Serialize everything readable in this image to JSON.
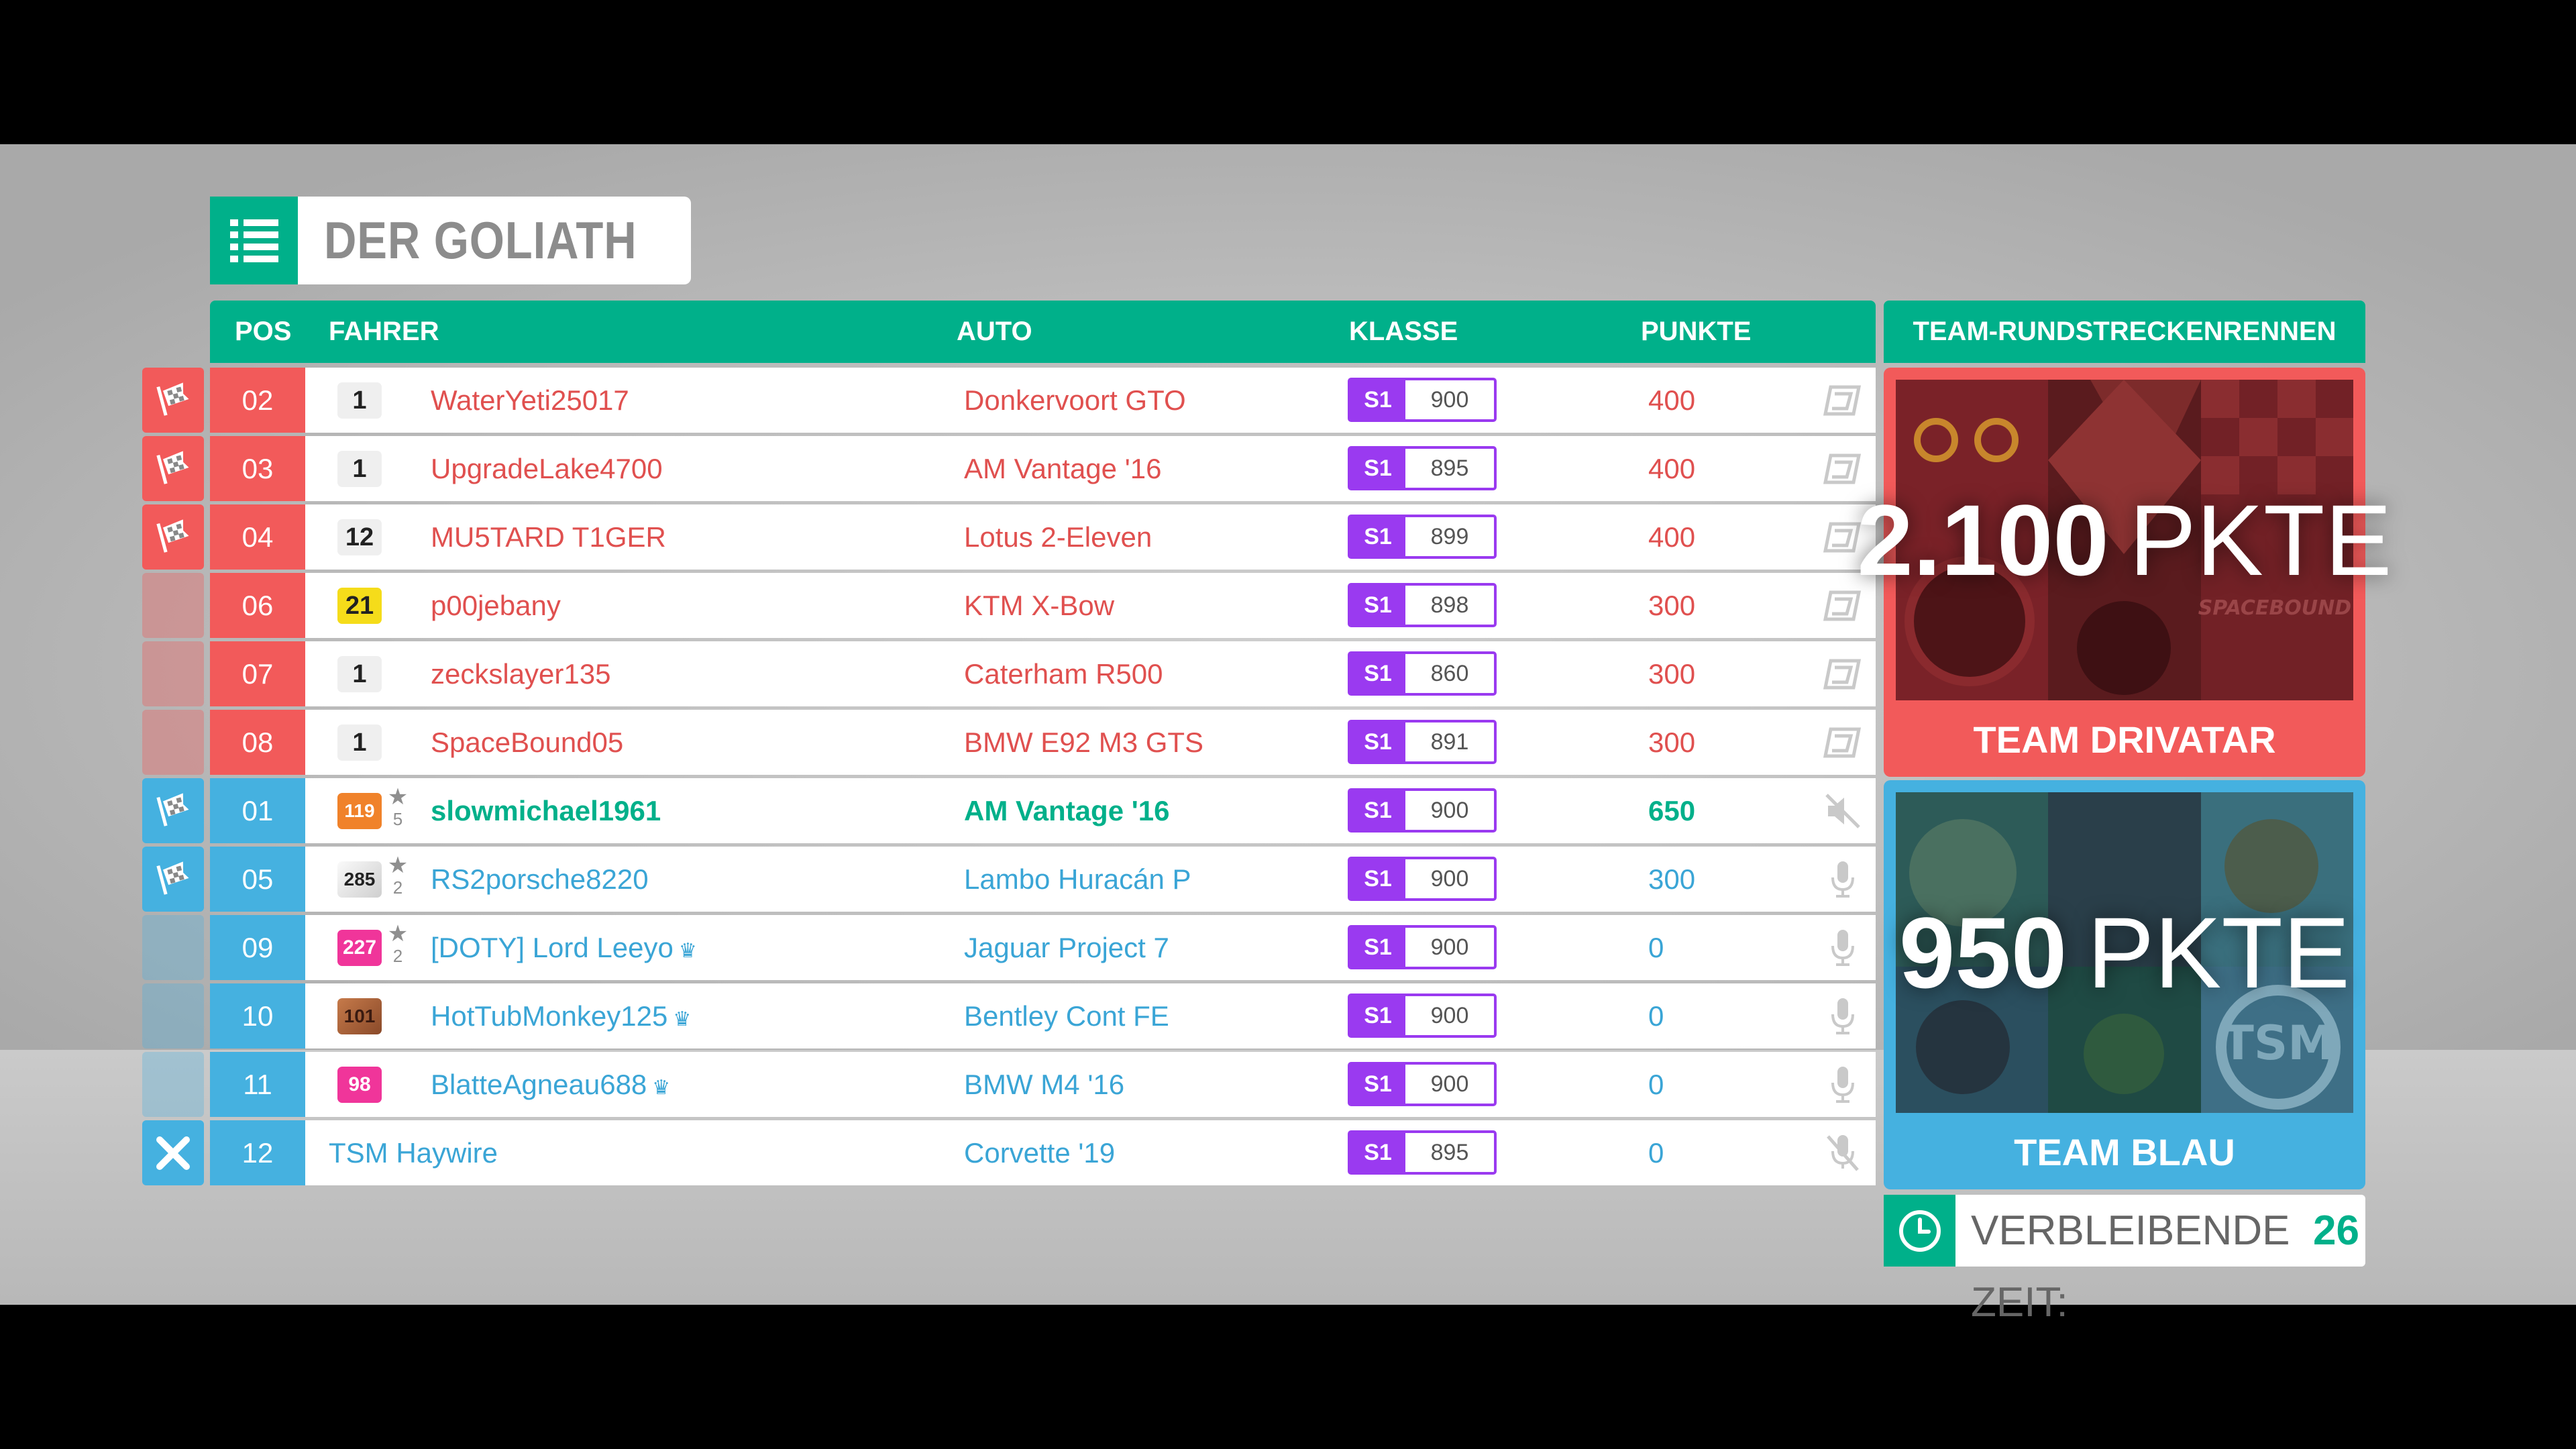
{
  "title": "DER GOLIATH",
  "headers": {
    "pos": "POS",
    "driver": "FAHRER",
    "car": "AUTO",
    "class": "KLASSE",
    "points": "PUNKTE",
    "side": "TEAM-RUNDSTRECKENRENNEN"
  },
  "colors": {
    "accent": "#00b08a",
    "team_red": "#f25a5a",
    "team_blue": "#45b1e0",
    "class_purple": "#9a3af0",
    "red_text": "#e0504f",
    "blue_text": "#3aa5d6"
  },
  "rows": [
    {
      "team": "red",
      "flag": true,
      "pos": "02",
      "badge": "1",
      "badge_style": "plain",
      "stars": "",
      "driver": "WaterYeti25017",
      "crown": false,
      "car": "Donkervoort GTO",
      "class_letter": "S1",
      "class_value": "900",
      "points": "400",
      "status_icon": "drivatar-icon",
      "self": false
    },
    {
      "team": "red",
      "flag": true,
      "pos": "03",
      "badge": "1",
      "badge_style": "plain",
      "stars": "",
      "driver": "UpgradeLake4700",
      "crown": false,
      "car": "AM Vantage '16",
      "class_letter": "S1",
      "class_value": "895",
      "points": "400",
      "status_icon": "drivatar-icon",
      "self": false
    },
    {
      "team": "red",
      "flag": true,
      "pos": "04",
      "badge": "12",
      "badge_style": "plain",
      "stars": "",
      "driver": "MU5TARD T1GER",
      "crown": false,
      "car": "Lotus 2-Eleven",
      "class_letter": "S1",
      "class_value": "899",
      "points": "400",
      "status_icon": "drivatar-icon",
      "self": false
    },
    {
      "team": "red",
      "flag": false,
      "pos": "06",
      "badge": "21",
      "badge_style": "yellow",
      "stars": "",
      "driver": "p00jebany",
      "crown": false,
      "car": "KTM X-Bow",
      "class_letter": "S1",
      "class_value": "898",
      "points": "300",
      "status_icon": "drivatar-icon",
      "self": false
    },
    {
      "team": "red",
      "flag": false,
      "pos": "07",
      "badge": "1",
      "badge_style": "plain",
      "stars": "",
      "driver": "zeckslayer135",
      "crown": false,
      "car": "Caterham R500",
      "class_letter": "S1",
      "class_value": "860",
      "points": "300",
      "status_icon": "drivatar-icon",
      "self": false
    },
    {
      "team": "red",
      "flag": false,
      "pos": "08",
      "badge": "1",
      "badge_style": "plain",
      "stars": "",
      "driver": "SpaceBound05",
      "crown": false,
      "car": "BMW E92 M3 GTS",
      "class_letter": "S1",
      "class_value": "891",
      "points": "300",
      "status_icon": "drivatar-icon",
      "self": false
    },
    {
      "team": "blue",
      "flag": true,
      "pos": "01",
      "badge": "119",
      "badge_style": "orange",
      "stars": "5",
      "driver": "slowmichael1961",
      "crown": false,
      "car": "AM Vantage '16",
      "class_letter": "S1",
      "class_value": "900",
      "points": "650",
      "status_icon": "speaker-muted-icon",
      "self": true
    },
    {
      "team": "blue",
      "flag": true,
      "pos": "05",
      "badge": "285",
      "badge_style": "silver",
      "stars": "2",
      "driver": "RS2porsche8220",
      "crown": false,
      "car": "Lambo Huracán P",
      "class_letter": "S1",
      "class_value": "900",
      "points": "300",
      "status_icon": "microphone-icon",
      "self": false
    },
    {
      "team": "blue",
      "flag": false,
      "pos": "09",
      "badge": "227",
      "badge_style": "pink",
      "stars": "2",
      "driver": "[DOTY] Lord Leeyo",
      "crown": true,
      "car": "Jaguar Project 7",
      "class_letter": "S1",
      "class_value": "900",
      "points": "0",
      "status_icon": "microphone-icon",
      "self": false
    },
    {
      "team": "blue",
      "flag": false,
      "pos": "10",
      "badge": "101",
      "badge_style": "bronze",
      "stars": "",
      "driver": "HotTubMonkey125",
      "crown": true,
      "car": "Bentley Cont FE",
      "class_letter": "S1",
      "class_value": "900",
      "points": "0",
      "status_icon": "microphone-icon",
      "self": false
    },
    {
      "team": "blue",
      "flag": false,
      "pos": "11",
      "badge": "98",
      "badge_style": "pink",
      "stars": "",
      "driver": "BlatteAgneau688",
      "crown": true,
      "car": "BMW M4 '16",
      "class_letter": "S1",
      "class_value": "900",
      "points": "0",
      "status_icon": "microphone-icon",
      "self": false
    },
    {
      "team": "blue",
      "flag": "x",
      "pos": "12",
      "badge": "",
      "badge_style": "none",
      "stars": "",
      "driver": "TSM Haywire",
      "crown": false,
      "car": "Corvette '19",
      "class_letter": "S1",
      "class_value": "895",
      "points": "0",
      "status_icon": "microphone-off-icon",
      "self": false
    }
  ],
  "teams": {
    "red": {
      "score": "2.100",
      "unit": "PKTE",
      "name": "TEAM DRIVATAR",
      "art_text": "SPACEBOUND"
    },
    "blue": {
      "score": "950",
      "unit": "PKTE",
      "name": "TEAM BLAU"
    }
  },
  "timer": {
    "label": "VERBLEIBENDE ZEIT:",
    "value": "26"
  }
}
